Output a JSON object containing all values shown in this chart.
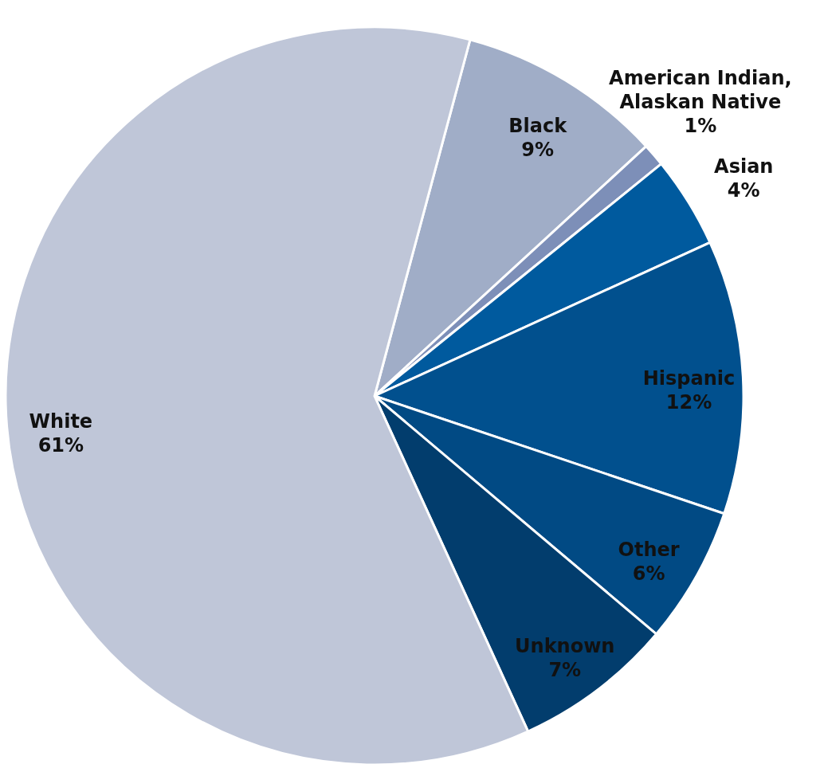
{
  "chart_data": {
    "type": "pie",
    "categories": [
      "Black",
      "American Indian, Alaskan Native",
      "Asian",
      "Hispanic",
      "Other",
      "Unknown",
      "White"
    ],
    "values": [
      9,
      1,
      4,
      12,
      6,
      7,
      61
    ],
    "colors": [
      "#a0adc7",
      "#7d8fb8",
      "#005a9e",
      "#01508e",
      "#014a84",
      "#023d6d",
      "#bfc6d8"
    ],
    "value_labels": [
      "9%",
      "1%",
      "4%",
      "12%",
      "6%",
      "7%",
      "61%"
    ],
    "legend": false
  }
}
